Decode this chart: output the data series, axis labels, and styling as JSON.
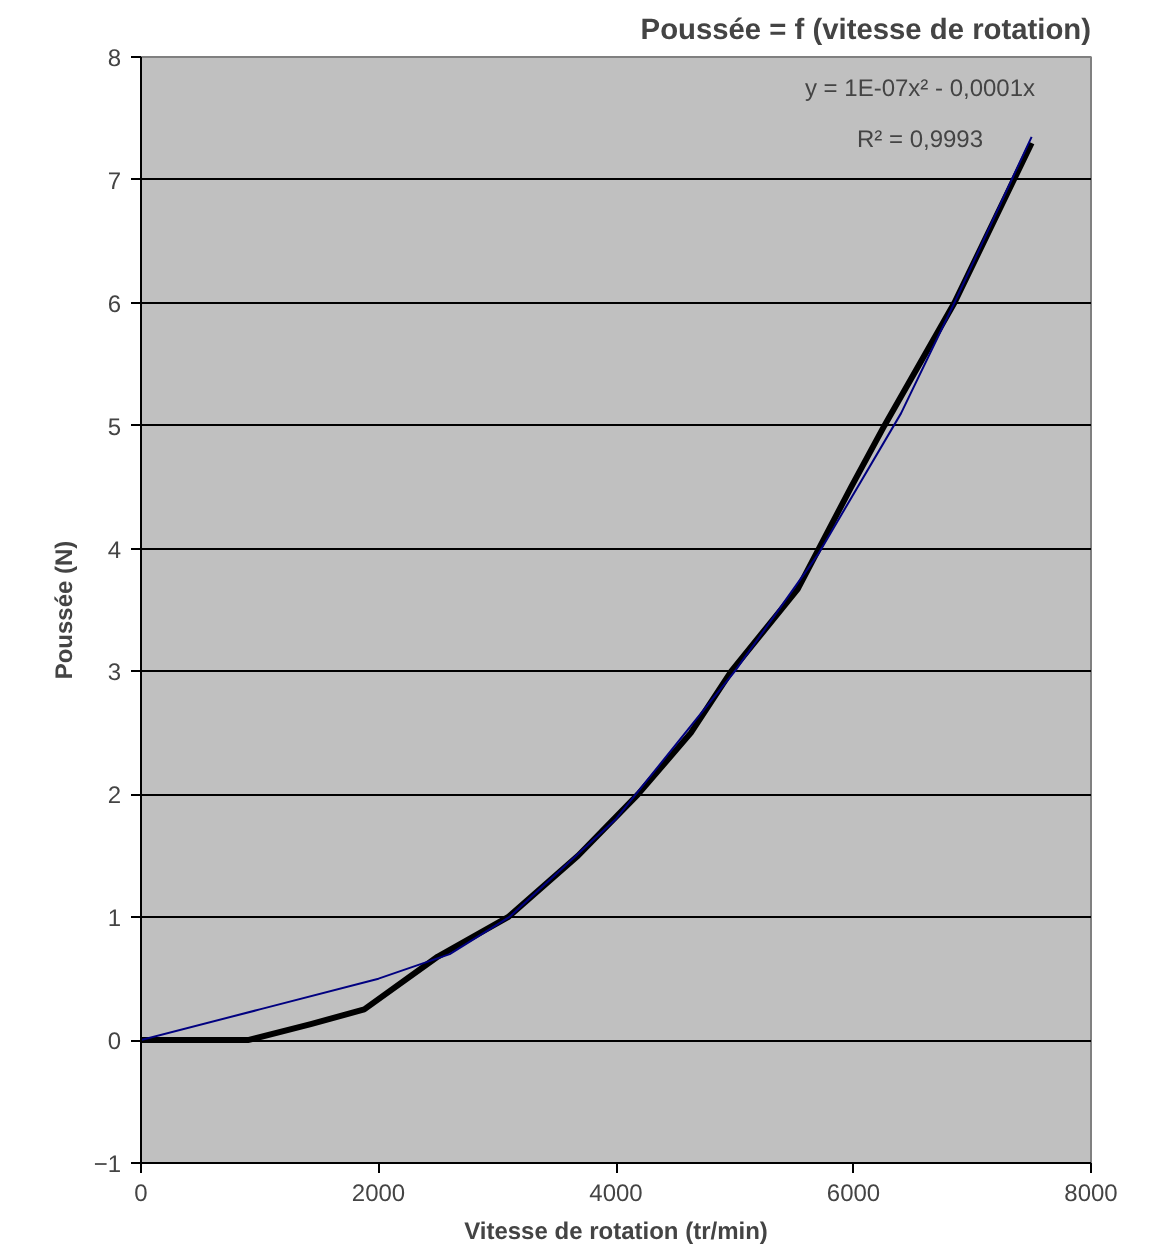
{
  "chart_data": {
    "type": "line",
    "title": "Poussée = f (vitesse de rotation)",
    "xlabel": "Vitesse de rotation (tr/min)",
    "ylabel": "Poussée (N)",
    "xlim": [
      0,
      8000
    ],
    "xticks": [
      0,
      2000,
      4000,
      6000,
      8000
    ],
    "ylim": [
      -1,
      8
    ],
    "yticks": [
      -1,
      0,
      1,
      2,
      3,
      4,
      5,
      6,
      7,
      8
    ],
    "grid": "y",
    "annotations": [
      "y = 1E-07x² - 0,0001x",
      "R² = 0,9993"
    ],
    "series": [
      {
        "color": "#000000",
        "x": [
          0,
          900,
          1430,
          1880,
          2500,
          3090,
          3680,
          4185,
          4630,
          4970,
          5530,
          5980,
          6260,
          6850,
          7500
        ],
        "values": [
          0,
          0,
          0.13,
          0.25,
          0.68,
          1.0,
          1.5,
          2.0,
          2.5,
          3.0,
          3.67,
          4.5,
          5.0,
          6.0,
          7.3
        ]
      },
      {
        "color": "#000080",
        "x": [
          0,
          1000,
          2000,
          2600,
          3100,
          4000,
          5000,
          5700,
          6400,
          6850,
          7500
        ],
        "values": [
          0,
          0.25,
          0.5,
          0.7,
          1.0,
          1.8,
          3.0,
          3.95,
          5.1,
          6.0,
          7.35
        ]
      }
    ]
  }
}
